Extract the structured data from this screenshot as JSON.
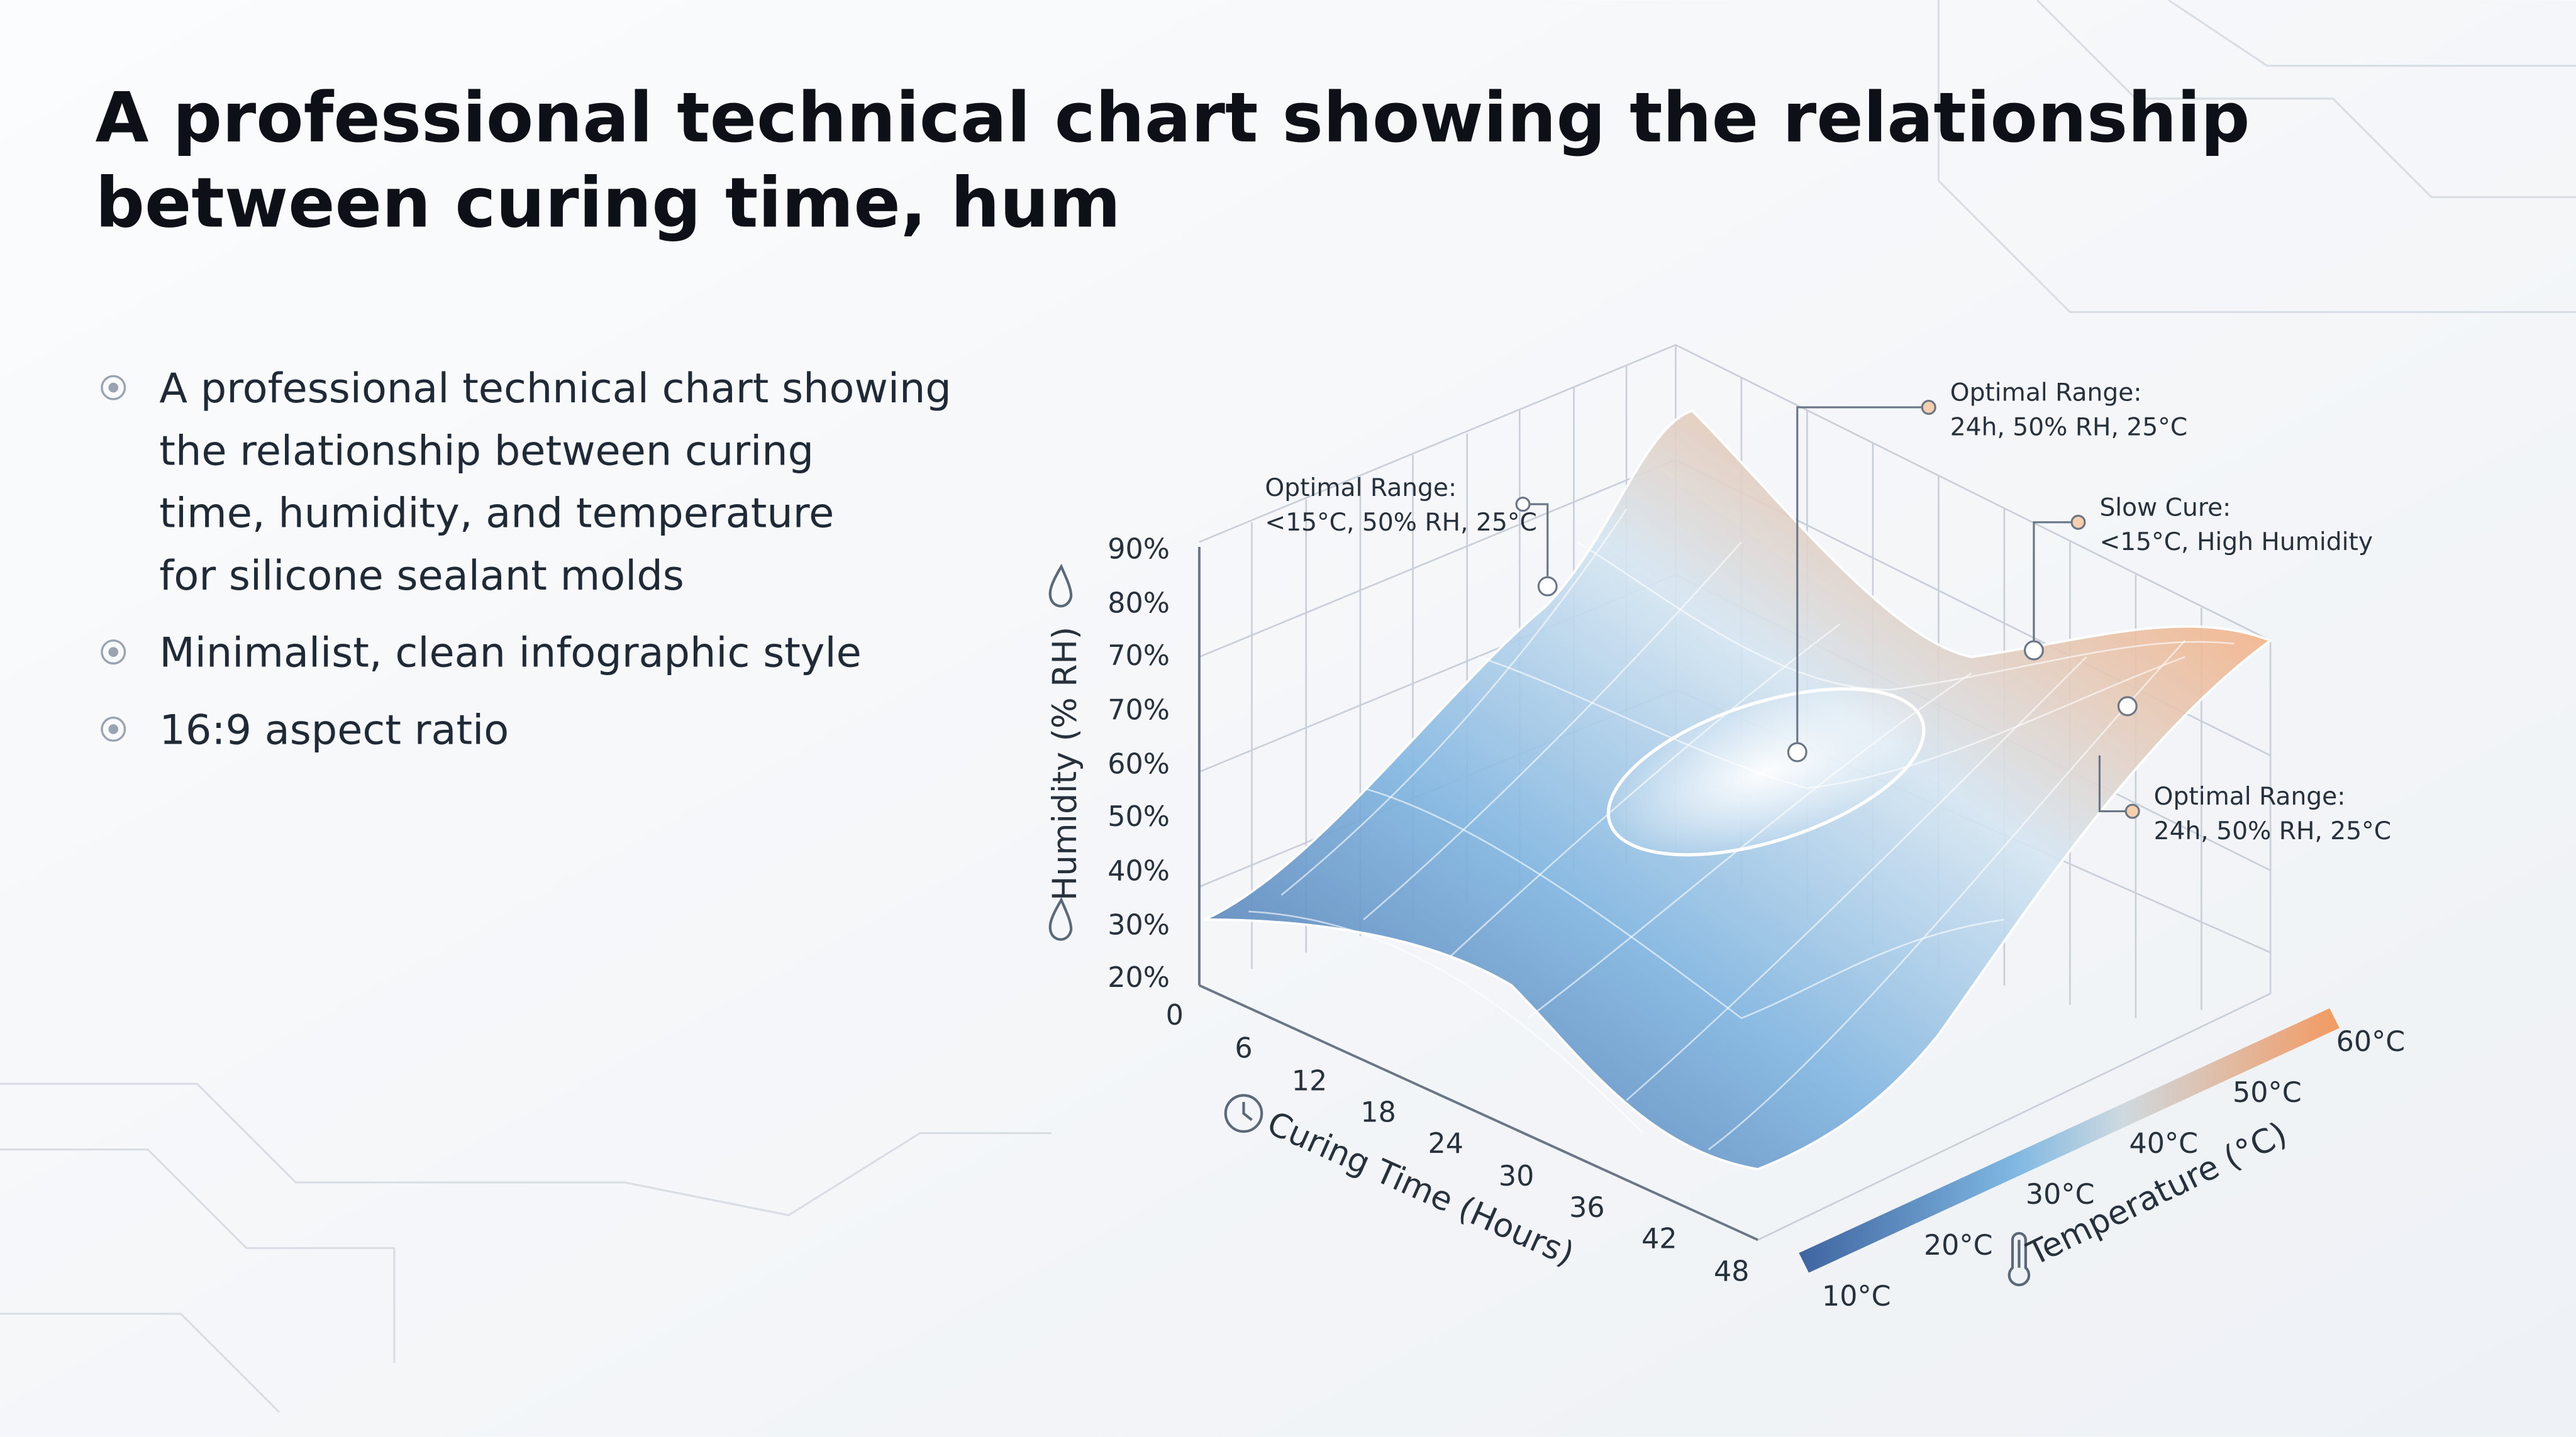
{
  "header": {
    "title_lines": [
      "A professional technical chart showing the relationship",
      "between curing time, hum"
    ]
  },
  "bullets": [
    {
      "lines": [
        "A professional technical chart showing",
        "the relationship between curing",
        "time, humidity, and temperature",
        "for silicone sealant molds"
      ]
    },
    {
      "lines": [
        "Minimalist, clean infographic style"
      ]
    },
    {
      "lines": [
        "16:9 aspect ratio"
      ]
    }
  ],
  "figure": {
    "humidity_axis": {
      "title": "Humidity (% RH)",
      "ticks": [
        "90%",
        "80%",
        "70%",
        "70%",
        "60%",
        "50%",
        "40%",
        "30%",
        "20%"
      ]
    },
    "time_axis": {
      "title": "Curing Time (Hours)",
      "ticks": [
        "0",
        "6",
        "12",
        "18",
        "24",
        "30",
        "36",
        "42",
        "48"
      ]
    },
    "temperature_axis": {
      "title": "Temperature (°C)",
      "ticks": [
        "10°C",
        "20°C",
        "30°C",
        "40°C",
        "50°C",
        "60°C"
      ]
    },
    "annotations": [
      {
        "lines": [
          "Optimal Range:",
          "<15°C, 50% RH, 25°C"
        ]
      },
      {
        "lines": [
          "Optimal Range:",
          "24h, 50% RH, 25°C"
        ]
      },
      {
        "lines": [
          "Slow Cure:",
          "<15°C, High Humidity"
        ]
      },
      {
        "lines": [
          "Optimal Range:",
          "24h, 50% RH, 25°C"
        ]
      }
    ]
  }
}
